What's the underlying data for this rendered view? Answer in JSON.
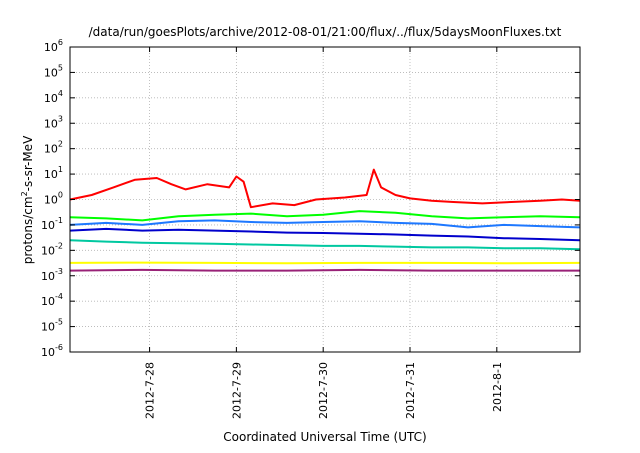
{
  "chart_data": {
    "type": "line",
    "title": "/data/run/goesPlots/archive/2012-08-01/21:00/flux/../flux/5daysMoonFluxes.txt",
    "xlabel": "Coordinated Universal Time (UTC)",
    "ylabel": "protons/cm2-s-sr-MeV",
    "ylabel_parts": {
      "pre": "protons/cm",
      "sup": "2",
      "post": "-s-sr-MeV"
    },
    "xlim": [
      "2012-07-27 02:00",
      "2012-08-01 23:00"
    ],
    "ylim": [
      1e-06,
      1000000.0
    ],
    "yscale": "log",
    "grid": true,
    "legend": "none",
    "x_ticks": [
      "2012-7-28",
      "2012-7-29",
      "2012-7-30",
      "2012-7-31",
      "2012-8-1"
    ],
    "x_tick_dates": [
      "2012-07-28",
      "2012-07-29",
      "2012-07-30",
      "2012-07-31",
      "2012-08-01"
    ],
    "y_ticks": [
      {
        "value": 1e-06,
        "base": "10",
        "exp": "-6"
      },
      {
        "value": 1e-05,
        "base": "10",
        "exp": "-5"
      },
      {
        "value": 0.0001,
        "base": "10",
        "exp": "-4"
      },
      {
        "value": 0.001,
        "base": "10",
        "exp": "-3"
      },
      {
        "value": 0.01,
        "base": "10",
        "exp": "-2"
      },
      {
        "value": 0.1,
        "base": "10",
        "exp": "-1"
      },
      {
        "value": 1.0,
        "base": "10",
        "exp": "0"
      },
      {
        "value": 10.0,
        "base": "10",
        "exp": "1"
      },
      {
        "value": 100.0,
        "base": "10",
        "exp": "2"
      },
      {
        "value": 1000.0,
        "base": "10",
        "exp": "3"
      },
      {
        "value": 10000.0,
        "base": "10",
        "exp": "4"
      },
      {
        "value": 100000.0,
        "base": "10",
        "exp": "5"
      },
      {
        "value": 1000000.0,
        "base": "10",
        "exp": "6"
      }
    ],
    "series": [
      {
        "color": "#ff0000",
        "x": [
          "2012-07-27 02:00",
          "2012-07-27 08:00",
          "2012-07-27 14:00",
          "2012-07-27 20:00",
          "2012-07-28 02:00",
          "2012-07-28 06:00",
          "2012-07-28 10:00",
          "2012-07-28 16:00",
          "2012-07-28 22:00",
          "2012-07-29 00:00",
          "2012-07-29 02:00",
          "2012-07-29 04:00",
          "2012-07-29 10:00",
          "2012-07-29 16:00",
          "2012-07-29 22:00",
          "2012-07-30 06:00",
          "2012-07-30 12:00",
          "2012-07-30 14:00",
          "2012-07-30 16:00",
          "2012-07-30 20:00",
          "2012-07-31 00:00",
          "2012-07-31 06:00",
          "2012-07-31 12:00",
          "2012-07-31 20:00",
          "2012-08-01 04:00",
          "2012-08-01 12:00",
          "2012-08-01 18:00",
          "2012-08-01 23:00"
        ],
        "y": [
          1.0,
          1.5,
          3,
          6,
          7,
          4,
          2.5,
          4,
          3,
          8,
          5,
          0.5,
          0.7,
          0.6,
          1.0,
          1.2,
          1.5,
          15,
          3,
          1.5,
          1.1,
          0.9,
          0.8,
          0.7,
          0.8,
          0.9,
          1.0,
          0.9
        ]
      },
      {
        "color": "#00ff00",
        "x": [
          "2012-07-27 02:00",
          "2012-07-27 12:00",
          "2012-07-27 22:00",
          "2012-07-28 08:00",
          "2012-07-28 18:00",
          "2012-07-29 04:00",
          "2012-07-29 14:00",
          "2012-07-30 00:00",
          "2012-07-30 10:00",
          "2012-07-30 20:00",
          "2012-07-31 06:00",
          "2012-07-31 16:00",
          "2012-08-01 02:00",
          "2012-08-01 12:00",
          "2012-08-01 23:00"
        ],
        "y": [
          0.2,
          0.18,
          0.15,
          0.22,
          0.25,
          0.28,
          0.22,
          0.25,
          0.35,
          0.3,
          0.22,
          0.18,
          0.2,
          0.22,
          0.2
        ]
      },
      {
        "color": "#1e78ff",
        "x": [
          "2012-07-27 02:00",
          "2012-07-27 12:00",
          "2012-07-27 22:00",
          "2012-07-28 08:00",
          "2012-07-28 18:00",
          "2012-07-29 04:00",
          "2012-07-29 14:00",
          "2012-07-30 00:00",
          "2012-07-30 10:00",
          "2012-07-30 20:00",
          "2012-07-31 06:00",
          "2012-07-31 16:00",
          "2012-08-01 02:00",
          "2012-08-01 12:00",
          "2012-08-01 23:00"
        ],
        "y": [
          0.1,
          0.12,
          0.1,
          0.14,
          0.15,
          0.13,
          0.12,
          0.13,
          0.14,
          0.12,
          0.11,
          0.08,
          0.1,
          0.09,
          0.08
        ]
      },
      {
        "color": "#0000cc",
        "x": [
          "2012-07-27 02:00",
          "2012-07-27 12:00",
          "2012-07-27 22:00",
          "2012-07-28 08:00",
          "2012-07-28 18:00",
          "2012-07-29 04:00",
          "2012-07-29 14:00",
          "2012-07-30 00:00",
          "2012-07-30 10:00",
          "2012-07-30 20:00",
          "2012-07-31 06:00",
          "2012-07-31 16:00",
          "2012-08-01 02:00",
          "2012-08-01 12:00",
          "2012-08-01 23:00"
        ],
        "y": [
          0.06,
          0.07,
          0.06,
          0.065,
          0.06,
          0.055,
          0.05,
          0.048,
          0.045,
          0.042,
          0.038,
          0.035,
          0.03,
          0.028,
          0.025
        ]
      },
      {
        "color": "#00c8a0",
        "x": [
          "2012-07-27 02:00",
          "2012-07-27 12:00",
          "2012-07-27 22:00",
          "2012-07-28 08:00",
          "2012-07-28 18:00",
          "2012-07-29 04:00",
          "2012-07-29 14:00",
          "2012-07-30 00:00",
          "2012-07-30 10:00",
          "2012-07-30 20:00",
          "2012-07-31 06:00",
          "2012-07-31 16:00",
          "2012-08-01 02:00",
          "2012-08-01 12:00",
          "2012-08-01 23:00"
        ],
        "y": [
          0.025,
          0.022,
          0.02,
          0.019,
          0.018,
          0.017,
          0.016,
          0.015,
          0.015,
          0.014,
          0.013,
          0.013,
          0.012,
          0.012,
          0.011
        ]
      },
      {
        "color": "#ffff00",
        "x": [
          "2012-07-27 02:00",
          "2012-07-27 22:00",
          "2012-07-28 18:00",
          "2012-07-29 14:00",
          "2012-07-30 10:00",
          "2012-07-31 06:00",
          "2012-08-01 02:00",
          "2012-08-01 23:00"
        ],
        "y": [
          0.0032,
          0.0033,
          0.0032,
          0.0031,
          0.0032,
          0.0032,
          0.0031,
          0.0032
        ]
      },
      {
        "color": "#992277",
        "x": [
          "2012-07-27 02:00",
          "2012-07-27 22:00",
          "2012-07-28 18:00",
          "2012-07-29 14:00",
          "2012-07-30 10:00",
          "2012-07-31 06:00",
          "2012-08-01 02:00",
          "2012-08-01 23:00"
        ],
        "y": [
          0.0016,
          0.0017,
          0.0016,
          0.0016,
          0.0017,
          0.0016,
          0.0016,
          0.0016
        ]
      }
    ]
  }
}
